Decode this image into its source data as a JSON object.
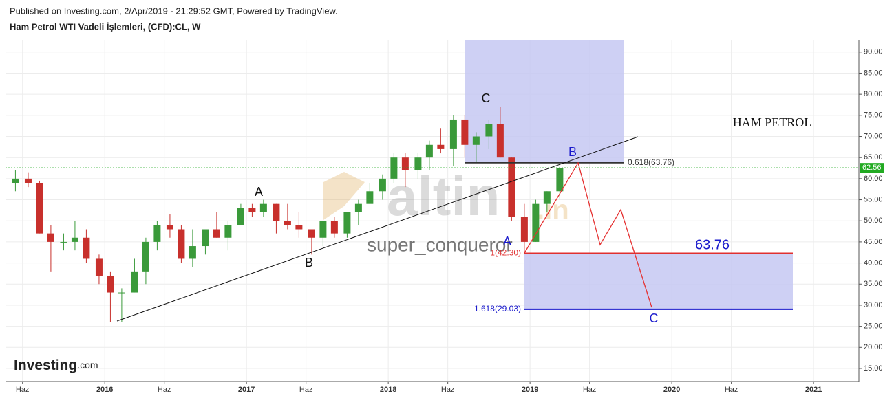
{
  "header": {
    "published": "Published on Investing.com, 2/Apr/2019 - 21:29:52 GMT, Powered by TradingView.",
    "instrument": "Ham Petrol WTI Vadeli İşlemleri, (CFD):CL, W"
  },
  "chart_data": {
    "type": "candlestick",
    "x": [
      2015.37,
      2015.46,
      2015.54,
      2015.62,
      2015.71,
      2015.79,
      2015.87,
      2015.96,
      2016.04,
      2016.12,
      2016.21,
      2016.29,
      2016.37,
      2016.46,
      2016.54,
      2016.62,
      2016.71,
      2016.79,
      2016.87,
      2016.96,
      2017.04,
      2017.12,
      2017.21,
      2017.29,
      2017.37,
      2017.46,
      2017.54,
      2017.62,
      2017.71,
      2017.79,
      2017.87,
      2017.96,
      2018.04,
      2018.12,
      2018.21,
      2018.29,
      2018.37,
      2018.46,
      2018.54,
      2018.62,
      2018.71,
      2018.79,
      2018.87,
      2018.96,
      2019.04,
      2019.12,
      2019.21
    ],
    "candles": [
      [
        59,
        62,
        57,
        60
      ],
      [
        60,
        61.5,
        58,
        59
      ],
      [
        59,
        59.5,
        47,
        47
      ],
      [
        47,
        49,
        38,
        45
      ],
      [
        45,
        47,
        43,
        45
      ],
      [
        45,
        50,
        43,
        46
      ],
      [
        46,
        48,
        40,
        41
      ],
      [
        41,
        42,
        35,
        37
      ],
      [
        37,
        38,
        26,
        33
      ],
      [
        33,
        34,
        26,
        33
      ],
      [
        33,
        41,
        33,
        38
      ],
      [
        38,
        46,
        35,
        45
      ],
      [
        45,
        50,
        43,
        49
      ],
      [
        49,
        51.5,
        46,
        48
      ],
      [
        48,
        49,
        40,
        41
      ],
      [
        41,
        48,
        39,
        44
      ],
      [
        44,
        48,
        42,
        48
      ],
      [
        48,
        52,
        46,
        46
      ],
      [
        46,
        50,
        43,
        49
      ],
      [
        49,
        54,
        49,
        53
      ],
      [
        53,
        54,
        51,
        52
      ],
      [
        52,
        55,
        51,
        54
      ],
      [
        54,
        54,
        47,
        50
      ],
      [
        50,
        54,
        48,
        49
      ],
      [
        49,
        52,
        46,
        48
      ],
      [
        48,
        48,
        42,
        46
      ],
      [
        46,
        50,
        44,
        50
      ],
      [
        50,
        51,
        46,
        47
      ],
      [
        47,
        52,
        46,
        52
      ],
      [
        52,
        55,
        49,
        54
      ],
      [
        54,
        59,
        54,
        57
      ],
      [
        57,
        61,
        55,
        60
      ],
      [
        60,
        66,
        59,
        65
      ],
      [
        65,
        66,
        58,
        62
      ],
      [
        62,
        66,
        60,
        65
      ],
      [
        65,
        69,
        62,
        68
      ],
      [
        68,
        72,
        66,
        67
      ],
      [
        67,
        75,
        63,
        74
      ],
      [
        74,
        75,
        65,
        68
      ],
      [
        68,
        71,
        64,
        70
      ],
      [
        70,
        74,
        67,
        73
      ],
      [
        73,
        77,
        65,
        65
      ],
      [
        65,
        65,
        50,
        51
      ],
      [
        51,
        54,
        42.4,
        45
      ],
      [
        45,
        55,
        45,
        54
      ],
      [
        54,
        57,
        52,
        57
      ],
      [
        57,
        62.6,
        55,
        62.56
      ]
    ],
    "up_color": "#3a9a3a",
    "down_color": "#c8302c",
    "last_price": 62.56,
    "xlim": [
      2015.3,
      2021.32
    ],
    "ylim": [
      11.9,
      92.9
    ],
    "grid": true,
    "xticks": [
      {
        "value": 2015.42,
        "label": "Haz"
      },
      2016,
      {
        "value": 2016.42,
        "label": "Haz"
      },
      2017,
      {
        "value": 2017.42,
        "label": "Haz"
      },
      2018,
      {
        "value": 2018.42,
        "label": "Haz"
      },
      2019,
      {
        "value": 2019.42,
        "label": "Haz"
      },
      2020,
      {
        "value": 2020.42,
        "label": "Haz"
      },
      2021
    ],
    "yticks": [
      {
        "value": 15,
        "label": "15.00"
      },
      {
        "value": 20,
        "label": "20.00"
      },
      {
        "value": 25,
        "label": "25.00"
      },
      {
        "value": 30,
        "label": "30.00"
      },
      {
        "value": 35,
        "label": "35.00"
      },
      {
        "value": 40,
        "label": "40.00"
      },
      {
        "value": 45,
        "label": "45.00"
      },
      {
        "value": 50,
        "label": "50.00"
      },
      {
        "value": 55,
        "label": "55.00"
      },
      {
        "value": 60,
        "label": "60.00"
      },
      {
        "value": 65,
        "label": "65.00"
      },
      {
        "value": 70,
        "label": "70.00"
      },
      {
        "value": 75,
        "label": "75.00"
      },
      {
        "value": 80,
        "label": "80.00"
      },
      {
        "value": 85,
        "label": "85.00"
      },
      {
        "value": 90,
        "label": "90.00"
      }
    ]
  },
  "annotations": {
    "fib_levels": [
      {
        "value": 63.76,
        "label": "0.618(63.76)",
        "color": "#333333"
      },
      {
        "value": 42.3,
        "label": "1(42.30)",
        "color": "#e03030"
      },
      {
        "value": 29.03,
        "label": "1.618(29.03)",
        "color": "#1a1acc"
      }
    ],
    "waves": [
      "A",
      "B",
      "C",
      "B",
      "A",
      "C"
    ],
    "target": 63.76,
    "title": "HAM PETROL",
    "watermark": [
      "altin",
      ".in",
      "super_conqueror"
    ],
    "logo": [
      "Investing",
      ".com"
    ]
  }
}
